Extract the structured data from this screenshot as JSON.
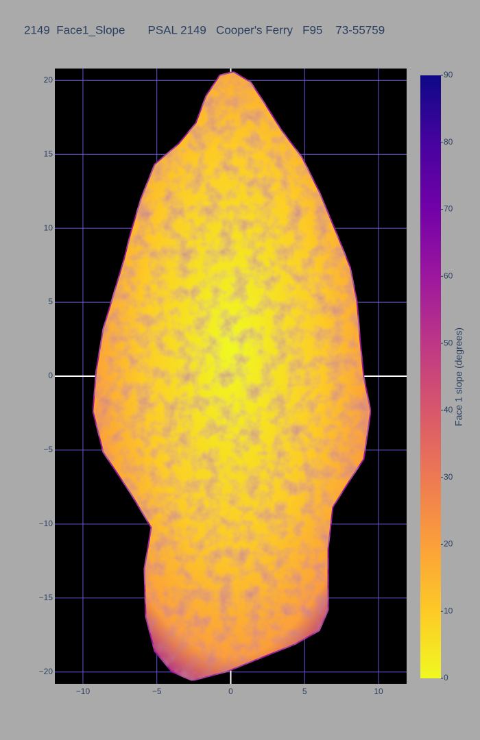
{
  "chart_data": {
    "type": "heatmap",
    "title": "2149  Face1_Slope       PSAL 2149   Cooper's Ferry   F95    73-55759",
    "xlim": [
      -11.9,
      11.9
    ],
    "ylim": [
      -20.8,
      20.8
    ],
    "xticks": [
      {
        "value": -10,
        "label": "−10"
      },
      {
        "value": -5,
        "label": "−5"
      },
      0,
      5,
      10
    ],
    "yticks": [
      {
        "value": -20,
        "label": "−20"
      },
      {
        "value": -15,
        "label": "−15"
      },
      {
        "value": -10,
        "label": "−10"
      },
      {
        "value": -5,
        "label": "−5"
      },
      0,
      5,
      10,
      15,
      20
    ],
    "grid": true,
    "zeroline": true,
    "outline": {
      "x": [
        0.19,
        1.35,
        2.27,
        3.43,
        4.83,
        5.99,
        7.15,
        8.08,
        8.54,
        8.77,
        9.0,
        9.47,
        9.0,
        8.08,
        6.91,
        6.59,
        6.59,
        5.99,
        4.36,
        2.04,
        -0.28,
        -2.6,
        -3.99,
        -5.15,
        -5.75,
        -5.85,
        -5.38,
        -6.77,
        -8.63,
        -9.33,
        -9.1,
        -8.63,
        -7.93,
        -7.24,
        -6.77,
        -6.08,
        -5.15,
        -3.53,
        -2.37,
        -1.67,
        -0.74
      ],
      "y": [
        20.58,
        19.88,
        18.49,
        16.64,
        14.79,
        12.47,
        9.69,
        7.37,
        5.05,
        2.27,
        -0.05,
        -2.36,
        -5.61,
        -7.0,
        -8.85,
        -11.63,
        -15.81,
        -17.2,
        -18.12,
        -19.05,
        -19.98,
        -20.58,
        -19.98,
        -18.59,
        -16.27,
        -13.02,
        -10.24,
        -7.93,
        -5.14,
        -2.36,
        0.42,
        3.2,
        5.52,
        7.83,
        9.69,
        12.0,
        14.32,
        15.71,
        17.1,
        18.96,
        20.35
      ]
    },
    "zlim": [
      0,
      90
    ],
    "zticks": [
      0,
      10,
      20,
      30,
      40,
      50,
      60,
      70,
      80,
      90
    ],
    "colorbar_title": "Face 1 slope (degrees)",
    "colorscale": [
      "#f0f921",
      "#fdca26",
      "#fb9f3a",
      "#ed7953",
      "#d8576b",
      "#bd3786",
      "#9c179e",
      "#7201a8",
      "#46039f",
      "#0d0887"
    ]
  }
}
